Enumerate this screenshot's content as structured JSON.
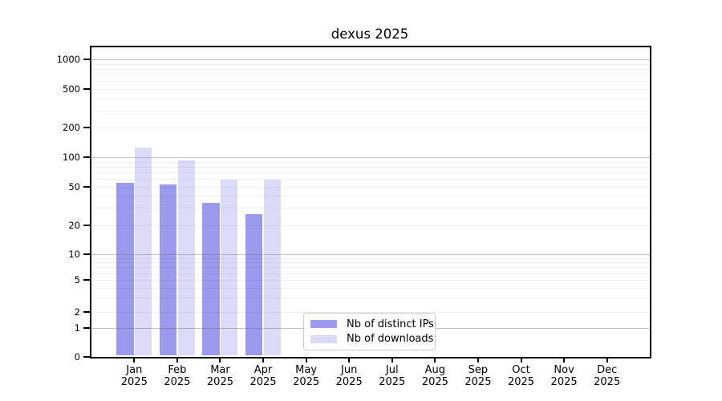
{
  "chart_data": {
    "type": "bar",
    "title": "dexus 2025",
    "x_tick_months": [
      "Jan",
      "Feb",
      "Mar",
      "Apr",
      "May",
      "Jun",
      "Jul",
      "Aug",
      "Sep",
      "Oct",
      "Nov",
      "Dec"
    ],
    "x_tick_year": "2025",
    "y_tick_labels": [
      "0",
      "1",
      "2",
      "5",
      "10",
      "20",
      "50",
      "100",
      "200",
      "500",
      "1000"
    ],
    "y_tick_values": [
      0,
      1,
      2,
      5,
      10,
      20,
      50,
      100,
      200,
      500,
      1000
    ],
    "y_scale": "log-like with 0 baseline",
    "grid": "horizontal gridlines: darker at 1,10,100,1000; faint minors at 2-9 per decade",
    "legend_position": "inside plot, bottom, left of center",
    "axes_box": "full black frame on all four sides",
    "series": [
      {
        "name": "Nb of distinct IPs",
        "color": "#9a9aee",
        "values": [
          55,
          53,
          34,
          26,
          null,
          null,
          null,
          null,
          null,
          null,
          null,
          null
        ]
      },
      {
        "name": "Nb of downloads",
        "color": "#dbdbf7",
        "values": [
          125,
          92,
          59,
          59,
          null,
          null,
          null,
          null,
          null,
          null,
          null,
          null
        ]
      }
    ]
  }
}
